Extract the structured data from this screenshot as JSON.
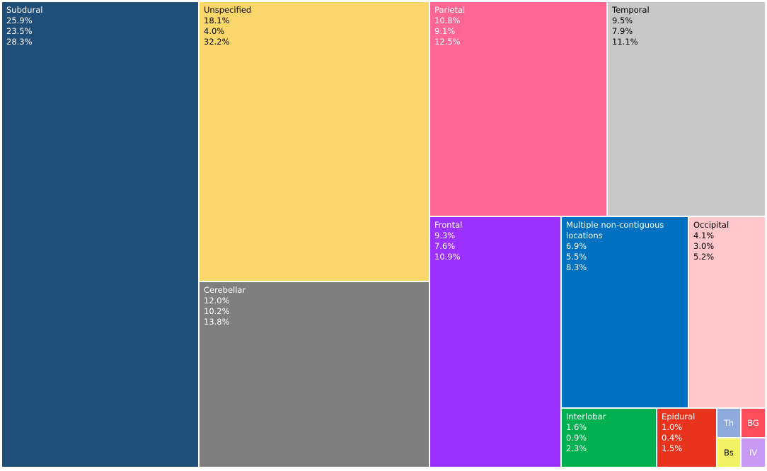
{
  "chart_data": {
    "type": "treemap",
    "title": "",
    "nodes": [
      {
        "label": "Subdural",
        "values": [
          "25.9%",
          "23.5%",
          "28.3%"
        ],
        "color": "#1f4e79",
        "text_color": "#ffffff"
      },
      {
        "label": "Unspecified",
        "values": [
          "18.1%",
          "4.0%",
          "32.2%"
        ],
        "color": "#fbd66b",
        "text_color": "#000000"
      },
      {
        "label": "Cerebellar",
        "values": [
          "12.0%",
          "10.2%",
          "13.8%"
        ],
        "color": "#7f7f7f",
        "text_color": "#ffffff"
      },
      {
        "label": "Parietal",
        "values": [
          "10.8%",
          "9.1%",
          "12.5%"
        ],
        "color": "#ff6792",
        "text_color": "#ffffff"
      },
      {
        "label": "Temporal",
        "values": [
          "9.5%",
          "7.9%",
          "11.1%"
        ],
        "color": "#c8c8c8",
        "text_color": "#000000"
      },
      {
        "label": "Frontal",
        "values": [
          "9.3%",
          "7.6%",
          "10.9%"
        ],
        "color": "#9b30ff",
        "text_color": "#ffffff"
      },
      {
        "label": "Multiple non-contiguous locations",
        "values": [
          "6.9%",
          "5.5%",
          "8.3%"
        ],
        "color": "#0070c0",
        "text_color": "#ffffff"
      },
      {
        "label": "Occipital",
        "values": [
          "4.1%",
          "3.0%",
          "5.2%"
        ],
        "color": "#ffc7ca",
        "text_color": "#000000"
      },
      {
        "label": "Interlobar",
        "values": [
          "1.6%",
          "0.9%",
          "2.3%"
        ],
        "color": "#00b050",
        "text_color": "#ffffff"
      },
      {
        "label": "Epidural",
        "values": [
          "1.0%",
          "0.4%",
          "1.5%"
        ],
        "color": "#e8341c",
        "text_color": "#ffffff"
      },
      {
        "label": "Th",
        "values": [],
        "color": "#8eaadb",
        "text_color": "#ffffff"
      },
      {
        "label": "BG",
        "values": [],
        "color": "#ff4d5c",
        "text_color": "#ffffff"
      },
      {
        "label": "Bs",
        "values": [],
        "color": "#f2f263",
        "text_color": "#000000"
      },
      {
        "label": "IV",
        "values": [],
        "color": "#c99af5",
        "text_color": "#ffffff"
      }
    ]
  }
}
